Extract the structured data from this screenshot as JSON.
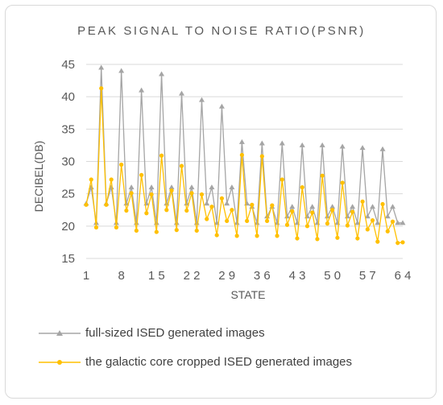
{
  "chart_data": {
    "type": "line",
    "title": "PEAK SIGNAL TO NOISE RATIO(PSNR)",
    "xlabel": "STATE",
    "ylabel": "DECIBEL(DB)",
    "ylim": [
      15,
      45
    ],
    "y_ticks": [
      15,
      20,
      25,
      30,
      35,
      40,
      45
    ],
    "x_ticks": [
      1,
      8,
      15,
      22,
      29,
      36,
      43,
      50,
      57,
      64
    ],
    "x_tick_labels": [
      "1",
      "8",
      "1 5",
      "2 2",
      "2 9",
      "3 6",
      "4 3",
      "5 0",
      "5 7",
      "6 4"
    ],
    "grid": "horizontal",
    "legend_position": "bottom",
    "x": [
      1,
      2,
      3,
      4,
      5,
      6,
      7,
      8,
      9,
      10,
      11,
      12,
      13,
      14,
      15,
      16,
      17,
      18,
      19,
      20,
      21,
      22,
      23,
      24,
      25,
      26,
      27,
      28,
      29,
      30,
      31,
      32,
      33,
      34,
      35,
      36,
      37,
      38,
      39,
      40,
      41,
      42,
      43,
      44,
      45,
      46,
      47,
      48,
      49,
      50,
      51,
      52,
      53,
      54,
      55,
      56,
      57,
      58,
      59,
      60,
      61,
      62,
      63,
      64
    ],
    "series": [
      {
        "name": "full-sized ISED generated images",
        "color": "#a5a5a5",
        "marker": "triangle",
        "values": [
          23.5,
          26.0,
          20.5,
          44.5,
          23.5,
          26.0,
          20.5,
          44.0,
          23.5,
          26.0,
          20.5,
          41.0,
          23.5,
          26.0,
          20.5,
          43.5,
          23.5,
          26.0,
          20.5,
          40.5,
          23.5,
          26.0,
          20.5,
          39.5,
          23.5,
          26.0,
          20.5,
          38.5,
          23.5,
          26.0,
          20.5,
          33.0,
          23.5,
          23.0,
          20.5,
          32.8,
          21.5,
          23.0,
          20.5,
          32.8,
          21.5,
          23.0,
          20.5,
          32.5,
          21.5,
          23.0,
          20.5,
          32.5,
          21.5,
          23.0,
          20.5,
          32.3,
          21.5,
          23.0,
          20.5,
          32.1,
          21.5,
          23.0,
          20.5,
          31.9,
          21.5,
          23.0,
          20.5,
          20.5
        ]
      },
      {
        "name": "the galactic core cropped ISED generated images",
        "color": "#ffc000",
        "marker": "circle",
        "values": [
          23.3,
          27.2,
          19.8,
          41.3,
          23.3,
          27.2,
          19.8,
          29.5,
          22.4,
          25.1,
          19.3,
          27.9,
          22.0,
          24.9,
          19.1,
          30.9,
          22.5,
          25.5,
          19.4,
          29.3,
          22.4,
          25.1,
          19.3,
          24.9,
          21.1,
          23.0,
          18.6,
          24.3,
          20.8,
          22.5,
          18.5,
          31.0,
          20.8,
          23.3,
          18.5,
          30.8,
          20.8,
          23.2,
          18.5,
          27.2,
          20.2,
          22.3,
          18.1,
          26.0,
          20.0,
          22.1,
          18.0,
          27.8,
          20.4,
          22.5,
          18.2,
          26.7,
          20.1,
          22.2,
          18.1,
          23.8,
          19.5,
          20.9,
          17.6,
          23.4,
          19.2,
          20.7,
          17.4,
          17.5
        ]
      }
    ]
  }
}
